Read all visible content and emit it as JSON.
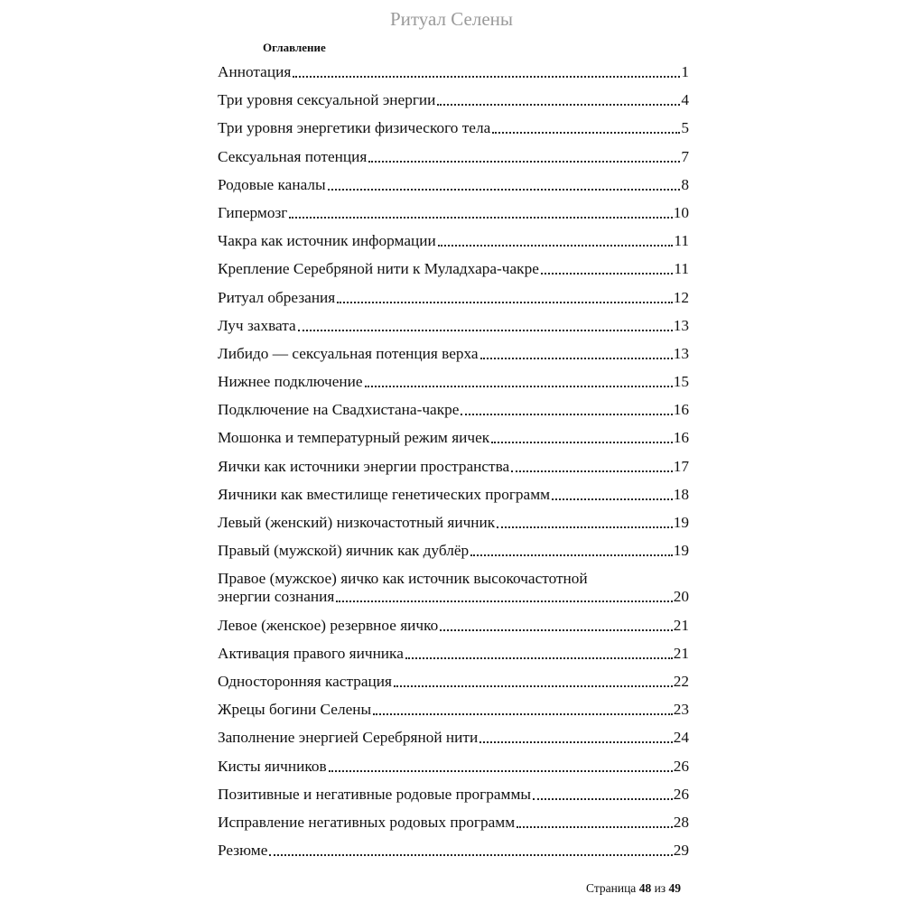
{
  "header": {
    "title": "Ритуал Селены"
  },
  "toc": {
    "title": "Оглавление",
    "entries": [
      {
        "title": "Аннотация",
        "page": "1"
      },
      {
        "title": "Три уровня сексуальной энергии",
        "page": "4"
      },
      {
        "title": "Три уровня энергетики физического тела",
        "page": "5"
      },
      {
        "title": "Сексуальная потенция",
        "page": "7"
      },
      {
        "title": "Родовые каналы",
        "page": "8"
      },
      {
        "title": "Гипермозг",
        "page": "10"
      },
      {
        "title": "Чакра как источник информации",
        "page": "11"
      },
      {
        "title": "Крепление Серебряной нити к Муладхара-чакре",
        "page": "11"
      },
      {
        "title": "Ритуал обрезания",
        "page": "12"
      },
      {
        "title": "Луч захвата",
        "page": "13"
      },
      {
        "title": "Либидо — сексуальная потенция верха",
        "page": "13"
      },
      {
        "title": "Нижнее подключение",
        "page": "15"
      },
      {
        "title": "Подключение на Свадхистана-чакре",
        "page": "16"
      },
      {
        "title": "Мошонка и температурный режим яичек",
        "page": "16"
      },
      {
        "title": "Яички как источники энергии пространства",
        "page": "17"
      },
      {
        "title": "Яичники как вместилище генетических программ",
        "page": "18"
      },
      {
        "title": "Левый (женский) низкочастотный яичник",
        "page": "19"
      },
      {
        "title": "Правый (мужской) яичник как дублёр",
        "page": "19"
      },
      {
        "title": "Правое (мужское) яичко как источник высокочастотной",
        "title2": "энергии сознания",
        "page": "20"
      },
      {
        "title": "Левое (женское) резервное яичко",
        "page": "21"
      },
      {
        "title": "Активация правого яичника",
        "page": "21"
      },
      {
        "title": "Односторонняя кастрация",
        "page": "22"
      },
      {
        "title": "Жрецы богини Селены",
        "page": "23"
      },
      {
        "title": "Заполнение энергией Серебряной нити",
        "page": "24"
      },
      {
        "title": "Кисты яичников",
        "page": "26"
      },
      {
        "title": "Позитивные и негативные родовые программы",
        "page": "26"
      },
      {
        "title": "Исправление негативных родовых программ",
        "page": "28"
      },
      {
        "title": "Резюме",
        "page": "29"
      }
    ]
  },
  "footer": {
    "label": "Страница",
    "current": "48",
    "of": "из",
    "total": "49"
  }
}
